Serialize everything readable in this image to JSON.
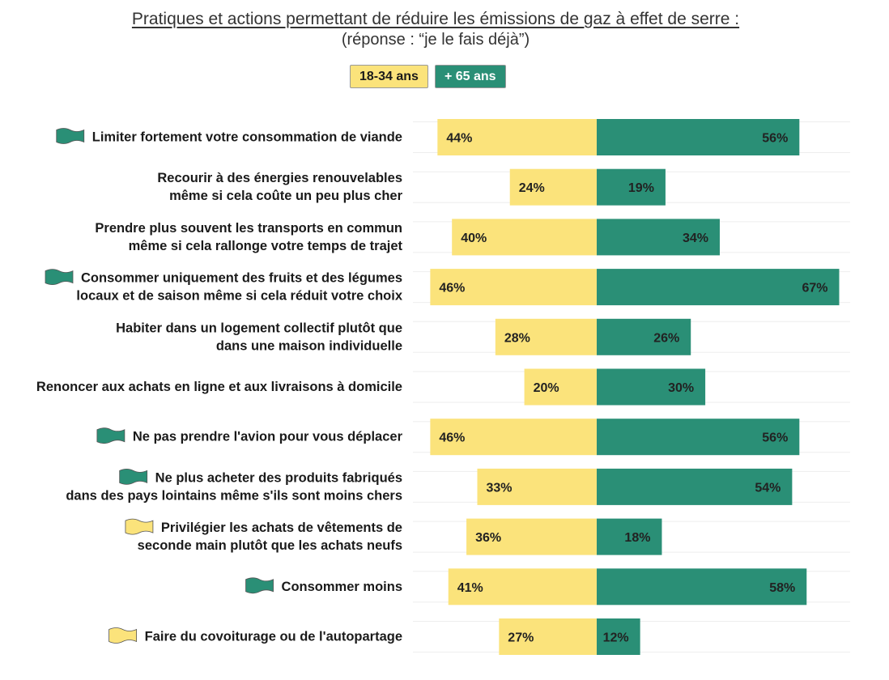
{
  "chart_data": {
    "type": "bar",
    "orientation": "horizontal-diverging",
    "title": "Pratiques et actions permettant de réduire les émissions de gaz à effet de serre :",
    "subtitle": "(réponse : “je le fais déjà”)",
    "series": [
      {
        "name": "18-34 ans",
        "color": "#fbe37b",
        "values": [
          44,
          24,
          40,
          46,
          28,
          20,
          46,
          33,
          36,
          41,
          27
        ]
      },
      {
        "name": "+ 65 ans",
        "color": "#2a8f76",
        "values": [
          56,
          19,
          34,
          67,
          26,
          30,
          56,
          54,
          18,
          58,
          12
        ]
      }
    ],
    "categories": [
      {
        "lines": [
          "Limiter fortement votre consommation de viande"
        ],
        "flag": "green"
      },
      {
        "lines": [
          "Recourir à des énergies renouvelables",
          "même si cela coûte un peu plus cher"
        ],
        "flag": ""
      },
      {
        "lines": [
          "Prendre plus souvent les transports en commun",
          "même si cela rallonge votre temps de trajet"
        ],
        "flag": ""
      },
      {
        "lines": [
          "Consommer uniquement des fruits et des légumes",
          "locaux et de saison même si cela réduit votre choix"
        ],
        "flag": "green"
      },
      {
        "lines": [
          "Habiter dans un logement collectif plutôt que",
          "dans une maison individuelle"
        ],
        "flag": ""
      },
      {
        "lines": [
          "Renoncer aux achats en ligne et aux livraisons à domicile"
        ],
        "flag": ""
      },
      {
        "lines": [
          "Ne pas prendre l'avion pour vous déplacer"
        ],
        "flag": "green"
      },
      {
        "lines": [
          "Ne plus acheter des produits fabriqués",
          "dans des pays lointains même s'ils sont moins chers"
        ],
        "flag": "green"
      },
      {
        "lines": [
          "Privilégier les achats de vêtements de",
          "seconde main plutôt que les achats neufs"
        ],
        "flag": "yellow"
      },
      {
        "lines": [
          "Consommer moins"
        ],
        "flag": "green"
      },
      {
        "lines": [
          "Faire du covoiturage ou de l'autopartage"
        ],
        "flag": "yellow"
      }
    ],
    "value_suffix": "%"
  }
}
